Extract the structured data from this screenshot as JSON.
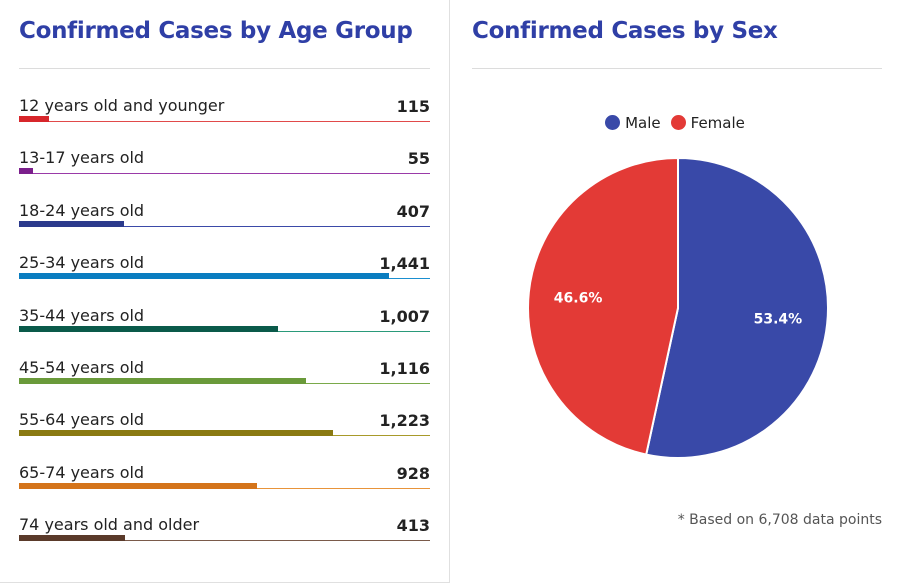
{
  "age_panel": {
    "title": "Confirmed Cases by Age Group"
  },
  "sex_panel": {
    "title": "Confirmed Cases by Sex",
    "footnote": "* Based on 6,708 data points"
  },
  "chart_data": [
    {
      "type": "bar",
      "title": "Confirmed Cases by Age Group",
      "orientation": "horizontal",
      "categories": [
        "12 years old and younger",
        "13-17 years old",
        "18-24 years old",
        "25-34 years old",
        "35-44 years old",
        "45-54 years old",
        "55-64 years old",
        "65-74 years old",
        "74 years old and older"
      ],
      "values": [
        115,
        55,
        407,
        1441,
        1007,
        1116,
        1223,
        928,
        413
      ],
      "value_labels": [
        "115",
        "55",
        "407",
        "1,441",
        "1,007",
        "1,116",
        "1,223",
        "928",
        "413"
      ],
      "colors": [
        "#d7262b",
        "#7b1f8c",
        "#2b3a8c",
        "#0a7dc0",
        "#0a5a4a",
        "#6a9a3a",
        "#8a7a12",
        "#d4741a",
        "#5a3a2a"
      ],
      "line_colors": [
        "#e14a4a",
        "#9a3aa8",
        "#3b4aa8",
        "#1a8fd0",
        "#2a9a7a",
        "#7aaa4a",
        "#a89a2a",
        "#e8943a",
        "#7a5a4a"
      ],
      "xlim": [
        0,
        1600
      ]
    },
    {
      "type": "pie",
      "title": "Confirmed Cases by Sex",
      "labels": [
        "Male",
        "Female"
      ],
      "values": [
        53.4,
        46.6
      ],
      "value_labels": [
        "53.4%",
        "46.6%"
      ],
      "colors": [
        "#3949a8",
        "#e33a36"
      ],
      "legend": "top"
    }
  ]
}
